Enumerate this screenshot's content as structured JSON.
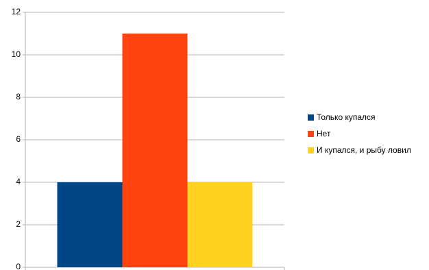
{
  "chart_data": {
    "type": "bar",
    "categories": [
      null
    ],
    "series": [
      {
        "name": "Только купался",
        "color": "#004586",
        "values": [
          4
        ]
      },
      {
        "name": "Нет",
        "color": "#ff420e",
        "values": [
          11
        ]
      },
      {
        "name": "И купался, и рыбу ловил",
        "color": "#ffd320",
        "values": [
          4
        ]
      }
    ],
    "ylim": [
      0,
      12
    ],
    "yticks": [
      0,
      2,
      4,
      6,
      8,
      10,
      12
    ],
    "grid": true,
    "legend": "right"
  }
}
